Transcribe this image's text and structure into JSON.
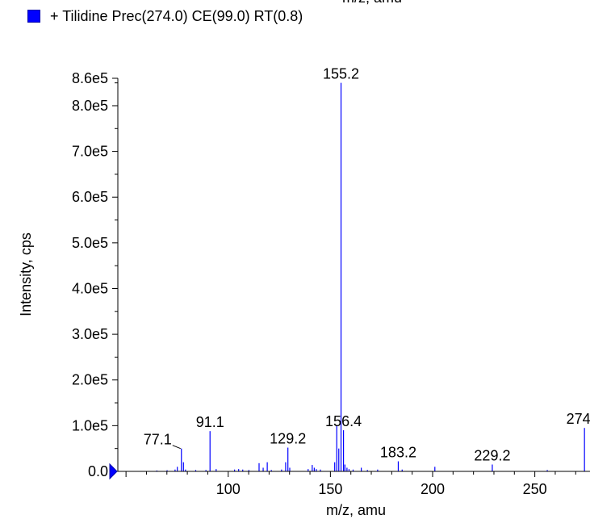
{
  "top_cut_label": "m/z, amu",
  "legend": {
    "label": "+ Tilidine Prec(274.0) CE(99.0) RT(0.8)",
    "color": "#0000ff"
  },
  "chart_data": {
    "type": "bar",
    "xlabel": "m/z, amu",
    "ylabel": "Intensity, cps",
    "xlim": [
      46,
      277
    ],
    "ylim": [
      0,
      860000
    ],
    "x_ticks": [
      100,
      150,
      200,
      250
    ],
    "y_ticks": [
      {
        "value": 0,
        "label": "0.0"
      },
      {
        "value": 100000,
        "label": "1.0e5"
      },
      {
        "value": 200000,
        "label": "2.0e5"
      },
      {
        "value": 300000,
        "label": "3.0e5"
      },
      {
        "value": 400000,
        "label": "4.0e5"
      },
      {
        "value": 500000,
        "label": "5.0e5"
      },
      {
        "value": 600000,
        "label": "6.0e5"
      },
      {
        "value": 700000,
        "label": "7.0e5"
      },
      {
        "value": 800000,
        "label": "8.0e5"
      },
      {
        "value": 860000,
        "label": "8.6e5"
      }
    ],
    "series": [
      {
        "color": "#0000ff",
        "peaks": [
          {
            "x": 65.1,
            "y": 2000
          },
          {
            "x": 70.1,
            "y": 2500
          },
          {
            "x": 74.0,
            "y": 4000
          },
          {
            "x": 75.1,
            "y": 10000
          },
          {
            "x": 77.1,
            "y": 50000
          },
          {
            "x": 78.1,
            "y": 20000
          },
          {
            "x": 79.1,
            "y": 4000
          },
          {
            "x": 84.1,
            "y": 3000
          },
          {
            "x": 89.1,
            "y": 3000
          },
          {
            "x": 91.1,
            "y": 88000
          },
          {
            "x": 94.1,
            "y": 5000
          },
          {
            "x": 103.1,
            "y": 4000
          },
          {
            "x": 105.1,
            "y": 5000
          },
          {
            "x": 107.1,
            "y": 4000
          },
          {
            "x": 110.1,
            "y": 3000
          },
          {
            "x": 115.1,
            "y": 18000
          },
          {
            "x": 117.1,
            "y": 8000
          },
          {
            "x": 119.1,
            "y": 20000
          },
          {
            "x": 121.1,
            "y": 3000
          },
          {
            "x": 126.1,
            "y": 4000
          },
          {
            "x": 128.1,
            "y": 20000
          },
          {
            "x": 129.2,
            "y": 52000
          },
          {
            "x": 130.1,
            "y": 8000
          },
          {
            "x": 139.1,
            "y": 5000
          },
          {
            "x": 141.1,
            "y": 14000
          },
          {
            "x": 142.1,
            "y": 8000
          },
          {
            "x": 143.1,
            "y": 5000
          },
          {
            "x": 145.1,
            "y": 4000
          },
          {
            "x": 152.1,
            "y": 20000
          },
          {
            "x": 153.1,
            "y": 100000
          },
          {
            "x": 154.1,
            "y": 50000
          },
          {
            "x": 155.2,
            "y": 850000
          },
          {
            "x": 156.4,
            "y": 90000
          },
          {
            "x": 157.1,
            "y": 15000
          },
          {
            "x": 158.1,
            "y": 8000
          },
          {
            "x": 159.1,
            "y": 5000
          },
          {
            "x": 161.1,
            "y": 4000
          },
          {
            "x": 165.1,
            "y": 8000
          },
          {
            "x": 168.1,
            "y": 3000
          },
          {
            "x": 173.1,
            "y": 4000
          },
          {
            "x": 183.2,
            "y": 22000
          },
          {
            "x": 185.1,
            "y": 4000
          },
          {
            "x": 201.1,
            "y": 10000
          },
          {
            "x": 229.2,
            "y": 15000
          },
          {
            "x": 256.1,
            "y": 3000
          },
          {
            "x": 274.3,
            "y": 95000
          }
        ]
      }
    ],
    "annotations": [
      {
        "text": "155.2",
        "x": 155.2,
        "y": 850000
      },
      {
        "text": "91.1",
        "x": 91.1,
        "y": 88000
      },
      {
        "text": "129.2",
        "x": 129.2,
        "y": 52000
      },
      {
        "text": "156.4",
        "x": 156.4,
        "y": 90000
      },
      {
        "text": "183.2",
        "x": 183.2,
        "y": 22000
      },
      {
        "text": "229.2",
        "x": 229.2,
        "y": 15000
      },
      {
        "text": "274.3",
        "x": 274.3,
        "y": 95000
      },
      {
        "text": "77.1",
        "x": 77.1,
        "y": 50000,
        "leader": true
      }
    ]
  }
}
